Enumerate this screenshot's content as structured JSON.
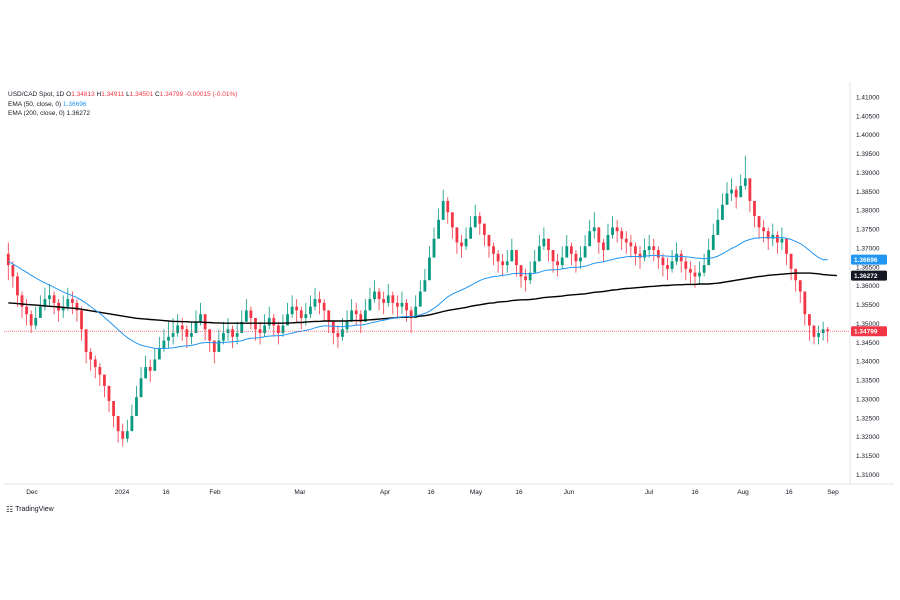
{
  "legend": {
    "symbol": "USD/CAD Spot, 1D",
    "open_label": "O",
    "open": "1.34813",
    "high_label": "H",
    "high": "1.34911",
    "low_label": "L",
    "low": "1.34501",
    "close_label": "C",
    "close": "1.34799",
    "change": "-0.00015 (-0.01%)",
    "ema50_label": "EMA (50, close, 0)",
    "ema50_value": "1.36696",
    "ema200_label": "EMA (200, close, 0)",
    "ema200_value": "1.36272"
  },
  "brand": {
    "name": "TradingView"
  },
  "colors": {
    "up": "#089981",
    "down": "#f23645",
    "ema50": "#2196f3",
    "ema200": "#000000",
    "price_line": "#f23645",
    "axis_text": "#131722",
    "border": "#e0e3eb"
  },
  "chart_data": {
    "type": "candlestick",
    "title": "USD/CAD Spot, 1D",
    "x_axis_labels": [
      "Dec",
      "2024",
      "16",
      "Feb",
      "Mar",
      "Apr",
      "16",
      "May",
      "16",
      "Jun",
      "Jul",
      "16",
      "Aug",
      "16",
      "Sep"
    ],
    "y_axis_ticks": [
      "1.31000",
      "1.31500",
      "1.32000",
      "1.32500",
      "1.33000",
      "1.33500",
      "1.34000",
      "1.34500",
      "1.35000",
      "1.35500",
      "1.36000",
      "1.36500",
      "1.37000",
      "1.37500",
      "1.38000",
      "1.38500",
      "1.39000",
      "1.39500",
      "1.40000",
      "1.40500",
      "1.41000"
    ],
    "ylim": [
      1.3075,
      1.4135
    ],
    "closes": [
      1.3655,
      1.3625,
      1.3575,
      1.3545,
      1.3525,
      1.3495,
      1.3515,
      1.3545,
      1.3565,
      1.3575,
      1.3555,
      1.3535,
      1.3545,
      1.3565,
      1.3555,
      1.3535,
      1.3485,
      1.3425,
      1.3405,
      1.3385,
      1.3365,
      1.3335,
      1.3295,
      1.3255,
      1.3215,
      1.3195,
      1.3215,
      1.3255,
      1.3305,
      1.3355,
      1.3385,
      1.3375,
      1.3405,
      1.3435,
      1.3455,
      1.3465,
      1.3475,
      1.3495,
      1.3485,
      1.3465,
      1.3475,
      1.3505,
      1.3525,
      1.3485,
      1.3455,
      1.3425,
      1.3455,
      1.3475,
      1.3485,
      1.3465,
      1.3475,
      1.3505,
      1.3535,
      1.3515,
      1.3485,
      1.3475,
      1.3495,
      1.3515,
      1.3495,
      1.3475,
      1.3495,
      1.3525,
      1.3545,
      1.3535,
      1.3515,
      1.3525,
      1.3545,
      1.3565,
      1.3555,
      1.3535,
      1.3505,
      1.3475,
      1.3465,
      1.3485,
      1.3505,
      1.3535,
      1.3525,
      1.3505,
      1.3535,
      1.3565,
      1.3585,
      1.3565,
      1.3555,
      1.3575,
      1.3555,
      1.3545,
      1.3555,
      1.3535,
      1.3515,
      1.3545,
      1.3585,
      1.3615,
      1.3675,
      1.3725,
      1.3775,
      1.3825,
      1.3795,
      1.3755,
      1.3715,
      1.3705,
      1.3725,
      1.3755,
      1.3785,
      1.3765,
      1.3735,
      1.3705,
      1.3685,
      1.3665,
      1.3655,
      1.3665,
      1.3695,
      1.3655,
      1.3625,
      1.3615,
      1.3635,
      1.3665,
      1.3705,
      1.3725,
      1.3695,
      1.3665,
      1.3655,
      1.3675,
      1.3705,
      1.3685,
      1.3665,
      1.3675,
      1.3705,
      1.3745,
      1.3755,
      1.3715,
      1.3695,
      1.3735,
      1.3755,
      1.3745,
      1.3725,
      1.3715,
      1.3705,
      1.3685,
      1.3675,
      1.3695,
      1.3705,
      1.3695,
      1.3675,
      1.3655,
      1.3645,
      1.3665,
      1.3685,
      1.3665,
      1.3645,
      1.3635,
      1.3625,
      1.3635,
      1.3655,
      1.3695,
      1.3735,
      1.3775,
      1.3815,
      1.3845,
      1.3855,
      1.3835,
      1.3865,
      1.3885,
      1.3825,
      1.3785,
      1.3755,
      1.3745,
      1.3725,
      1.3735,
      1.3715,
      1.3725,
      1.3685,
      1.3645,
      1.3615,
      1.3585,
      1.3525,
      1.3495,
      1.3465,
      1.3475,
      1.3485,
      1.34799
    ],
    "highs": [
      1.3715,
      1.3665,
      1.3635,
      1.3585,
      1.3565,
      1.3535,
      1.3545,
      1.3575,
      1.3595,
      1.3605,
      1.3585,
      1.3565,
      1.3575,
      1.3595,
      1.3585,
      1.3565,
      1.3545,
      1.3485,
      1.3435,
      1.3415,
      1.3395,
      1.3365,
      1.3335,
      1.3295,
      1.3255,
      1.3235,
      1.3245,
      1.3285,
      1.3335,
      1.3385,
      1.3415,
      1.3405,
      1.3435,
      1.3465,
      1.3485,
      1.3505,
      1.3515,
      1.3525,
      1.3515,
      1.3495,
      1.3505,
      1.3535,
      1.3555,
      1.3525,
      1.3485,
      1.3455,
      1.3485,
      1.3505,
      1.3515,
      1.3495,
      1.3505,
      1.3535,
      1.3565,
      1.3545,
      1.3515,
      1.3505,
      1.3525,
      1.3545,
      1.3525,
      1.3505,
      1.3525,
      1.3555,
      1.3575,
      1.3565,
      1.3545,
      1.3555,
      1.3575,
      1.3595,
      1.3585,
      1.3565,
      1.3535,
      1.3505,
      1.3495,
      1.3515,
      1.3535,
      1.3565,
      1.3555,
      1.3535,
      1.3565,
      1.3595,
      1.3615,
      1.3595,
      1.3585,
      1.3605,
      1.3585,
      1.3575,
      1.3585,
      1.3565,
      1.3545,
      1.3575,
      1.3615,
      1.3645,
      1.3705,
      1.3755,
      1.3805,
      1.3855,
      1.3835,
      1.3785,
      1.3755,
      1.3735,
      1.3755,
      1.3785,
      1.3815,
      1.3795,
      1.3765,
      1.3735,
      1.3715,
      1.3695,
      1.3685,
      1.3695,
      1.3725,
      1.3695,
      1.3655,
      1.3645,
      1.3665,
      1.3695,
      1.3735,
      1.3755,
      1.3725,
      1.3695,
      1.3685,
      1.3705,
      1.3735,
      1.3715,
      1.3695,
      1.3705,
      1.3735,
      1.3775,
      1.3795,
      1.3755,
      1.3725,
      1.3765,
      1.3785,
      1.3775,
      1.3755,
      1.3745,
      1.3735,
      1.3715,
      1.3705,
      1.3725,
      1.3735,
      1.3725,
      1.3705,
      1.3685,
      1.3675,
      1.3695,
      1.3715,
      1.3695,
      1.3675,
      1.3665,
      1.3655,
      1.3665,
      1.3685,
      1.3725,
      1.3765,
      1.3805,
      1.3845,
      1.3875,
      1.3885,
      1.3865,
      1.3895,
      1.3945,
      1.3885,
      1.3825,
      1.3785,
      1.3775,
      1.3755,
      1.3765,
      1.3745,
      1.3755,
      1.3725,
      1.3685,
      1.3645,
      1.3615,
      1.3565,
      1.3525,
      1.3495,
      1.3495,
      1.3505,
      1.34911
    ],
    "lows": [
      1.3615,
      1.3595,
      1.3545,
      1.3515,
      1.3495,
      1.3475,
      1.3485,
      1.3515,
      1.3535,
      1.3545,
      1.3525,
      1.3505,
      1.3515,
      1.3535,
      1.3525,
      1.3505,
      1.3455,
      1.3395,
      1.3375,
      1.3355,
      1.3335,
      1.3305,
      1.3265,
      1.3225,
      1.3185,
      1.3175,
      1.3185,
      1.3225,
      1.3275,
      1.3325,
      1.3355,
      1.3345,
      1.3375,
      1.3405,
      1.3425,
      1.3435,
      1.3445,
      1.3465,
      1.3455,
      1.3435,
      1.3445,
      1.3475,
      1.3495,
      1.3455,
      1.3425,
      1.3395,
      1.3425,
      1.3445,
      1.3455,
      1.3435,
      1.3445,
      1.3475,
      1.3505,
      1.3485,
      1.3455,
      1.3445,
      1.3465,
      1.3485,
      1.3465,
      1.3445,
      1.3465,
      1.3495,
      1.3515,
      1.3505,
      1.3485,
      1.3495,
      1.3515,
      1.3535,
      1.3525,
      1.3505,
      1.3475,
      1.3445,
      1.3435,
      1.3455,
      1.3475,
      1.3505,
      1.3495,
      1.3475,
      1.3505,
      1.3535,
      1.3555,
      1.3535,
      1.3525,
      1.3545,
      1.3525,
      1.3515,
      1.3525,
      1.3505,
      1.3475,
      1.3515,
      1.3555,
      1.3585,
      1.3645,
      1.3695,
      1.3745,
      1.3795,
      1.3765,
      1.3725,
      1.3685,
      1.3675,
      1.3695,
      1.3725,
      1.3755,
      1.3735,
      1.3705,
      1.3675,
      1.3655,
      1.3635,
      1.3625,
      1.3635,
      1.3665,
      1.3625,
      1.3595,
      1.3585,
      1.3605,
      1.3635,
      1.3675,
      1.3695,
      1.3665,
      1.3635,
      1.3625,
      1.3645,
      1.3675,
      1.3655,
      1.3635,
      1.3645,
      1.3675,
      1.3715,
      1.3725,
      1.3685,
      1.3665,
      1.3705,
      1.3725,
      1.3715,
      1.3695,
      1.3685,
      1.3675,
      1.3655,
      1.3645,
      1.3665,
      1.3675,
      1.3665,
      1.3645,
      1.3625,
      1.3615,
      1.3635,
      1.3655,
      1.3635,
      1.3615,
      1.3605,
      1.3595,
      1.3605,
      1.3625,
      1.3665,
      1.3705,
      1.3745,
      1.3785,
      1.3815,
      1.3825,
      1.3805,
      1.3835,
      1.3855,
      1.3795,
      1.3755,
      1.3725,
      1.3715,
      1.3695,
      1.3705,
      1.3685,
      1.3695,
      1.3655,
      1.3615,
      1.3585,
      1.3555,
      1.3495,
      1.3455,
      1.3445,
      1.3445,
      1.3455,
      1.34501
    ],
    "ema50": [
      1.3665,
      1.3658,
      1.3651,
      1.3643,
      1.3636,
      1.3628,
      1.3621,
      1.3614,
      1.3608,
      1.3602,
      1.3596,
      1.359,
      1.3584,
      1.3579,
      1.3574,
      1.3569,
      1.3562,
      1.3554,
      1.3545,
      1.3536,
      1.3527,
      1.3517,
      1.3506,
      1.3495,
      1.3484,
      1.3473,
      1.3463,
      1.3455,
      1.3448,
      1.3443,
      1.344,
      1.3437,
      1.3435,
      1.3434,
      1.3434,
      1.3435,
      1.3436,
      1.3438,
      1.344,
      1.3441,
      1.3442,
      1.3445,
      1.3448,
      1.345,
      1.345,
      1.3449,
      1.3449,
      1.345,
      1.3451,
      1.3452,
      1.3453,
      1.3455,
      1.3459,
      1.3461,
      1.3462,
      1.3463,
      1.3465,
      1.3467,
      1.3468,
      1.3468,
      1.3469,
      1.3472,
      1.3475,
      1.3478,
      1.348,
      1.3482,
      1.3485,
      1.3489,
      1.3492,
      1.3494,
      1.3494,
      1.3493,
      1.3492,
      1.3492,
      1.3493,
      1.3494,
      1.3496,
      1.3496,
      1.3498,
      1.3501,
      1.3504,
      1.3507,
      1.3509,
      1.3512,
      1.3514,
      1.3516,
      1.3518,
      1.3519,
      1.3519,
      1.352,
      1.3523,
      1.3527,
      1.3533,
      1.3541,
      1.355,
      1.3561,
      1.3571,
      1.3578,
      1.3584,
      1.3589,
      1.3595,
      1.3601,
      1.3608,
      1.3614,
      1.3619,
      1.3622,
      1.3625,
      1.3626,
      1.3628,
      1.3629,
      1.3632,
      1.3633,
      1.3633,
      1.3632,
      1.3632,
      1.3633,
      1.3636,
      1.364,
      1.3642,
      1.3643,
      1.3643,
      1.3645,
      1.3647,
      1.3649,
      1.3649,
      1.365,
      1.3652,
      1.3656,
      1.366,
      1.3662,
      1.3664,
      1.3667,
      1.367,
      1.3673,
      1.3675,
      1.3677,
      1.3678,
      1.3678,
      1.3678,
      1.3679,
      1.368,
      1.3681,
      1.368,
      1.368,
      1.3679,
      1.3678,
      1.3679,
      1.3678,
      1.3677,
      1.3676,
      1.3674,
      1.3673,
      1.3672,
      1.3673,
      1.3675,
      1.3679,
      1.3685,
      1.3692,
      1.3699,
      1.3705,
      1.3712,
      1.3719,
      1.3723,
      1.3726,
      1.3727,
      1.3728,
      1.3728,
      1.3728,
      1.3728,
      1.3728,
      1.3726,
      1.3723,
      1.3718,
      1.3712,
      1.3704,
      1.3694,
      1.3684,
      1.3675,
      1.3669,
      1.36696
    ],
    "ema200": [
      1.3555,
      1.3554,
      1.3553,
      1.3552,
      1.3551,
      1.355,
      1.3549,
      1.3548,
      1.3547,
      1.3546,
      1.3545,
      1.3544,
      1.3543,
      1.3542,
      1.3541,
      1.354,
      1.3538,
      1.3536,
      1.3534,
      1.3532,
      1.353,
      1.3528,
      1.3526,
      1.3524,
      1.3522,
      1.352,
      1.3518,
      1.3516,
      1.3514,
      1.3513,
      1.3512,
      1.3511,
      1.351,
      1.3509,
      1.3508,
      1.3507,
      1.3506,
      1.3506,
      1.3505,
      1.3505,
      1.3504,
      1.3504,
      1.3504,
      1.3503,
      1.3503,
      1.3502,
      1.3502,
      1.3501,
      1.3501,
      1.3501,
      1.3501,
      1.3501,
      1.3501,
      1.3501,
      1.3501,
      1.3501,
      1.3501,
      1.3501,
      1.3501,
      1.3501,
      1.3501,
      1.3502,
      1.3502,
      1.3503,
      1.3503,
      1.3504,
      1.3505,
      1.3506,
      1.3506,
      1.3507,
      1.3507,
      1.3507,
      1.3507,
      1.3507,
      1.3507,
      1.3508,
      1.3508,
      1.3508,
      1.3509,
      1.351,
      1.3511,
      1.3512,
      1.3513,
      1.3514,
      1.3515,
      1.3516,
      1.3517,
      1.3517,
      1.3518,
      1.3518,
      1.352,
      1.3521,
      1.3523,
      1.3526,
      1.3529,
      1.3532,
      1.3535,
      1.3537,
      1.3539,
      1.3541,
      1.3543,
      1.3546,
      1.3548,
      1.355,
      1.3552,
      1.3554,
      1.3555,
      1.3557,
      1.3558,
      1.3559,
      1.3561,
      1.3562,
      1.3563,
      1.3563,
      1.3564,
      1.3565,
      1.3567,
      1.3569,
      1.357,
      1.3571,
      1.3572,
      1.3573,
      1.3575,
      1.3576,
      1.3577,
      1.3578,
      1.3579,
      1.3581,
      1.3583,
      1.3584,
      1.3585,
      1.3587,
      1.3589,
      1.359,
      1.3592,
      1.3593,
      1.3594,
      1.3595,
      1.3596,
      1.3597,
      1.3598,
      1.3599,
      1.36,
      1.3601,
      1.3601,
      1.3602,
      1.3603,
      1.3603,
      1.3604,
      1.3604,
      1.3604,
      1.3605,
      1.3605,
      1.3605,
      1.3606,
      1.3607,
      1.3609,
      1.3611,
      1.3613,
      1.3615,
      1.3617,
      1.3619,
      1.3621,
      1.3623,
      1.3625,
      1.3626,
      1.3628,
      1.3629,
      1.363,
      1.3631,
      1.3632,
      1.3633,
      1.3634,
      1.3634,
      1.3634,
      1.3634,
      1.3633,
      1.3632,
      1.363,
      1.3629,
      1.3628,
      1.36272
    ],
    "last_price": 1.34799,
    "last_ema50": 1.36696,
    "last_ema200": 1.36272,
    "grid": false
  }
}
